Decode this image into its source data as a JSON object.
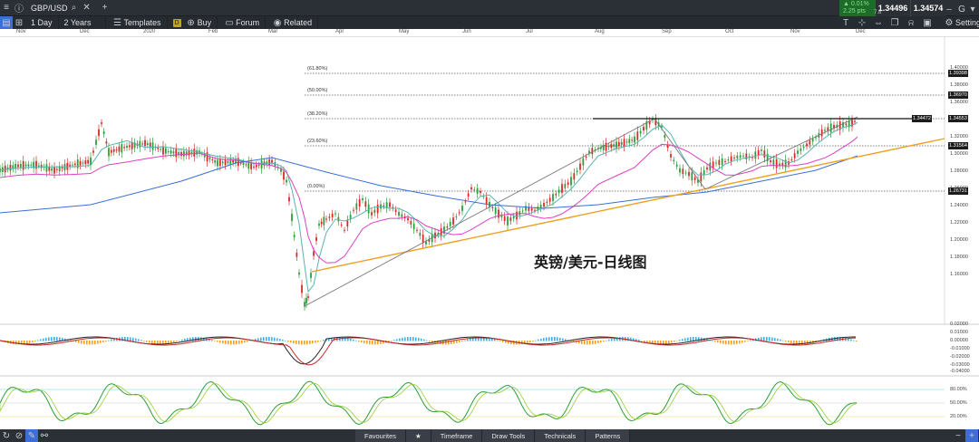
{
  "topbar": {
    "symbol": "GBP/USD",
    "change_pct": "▲ 0.01%",
    "change_pips": "2.25 pts",
    "bid": "1.34496",
    "ask": "1.34574",
    "spread": "7.8"
  },
  "toolbar": {
    "timeframe": "1 Day",
    "range": "2 Years",
    "templates": "Templates",
    "d_badge": "D",
    "buy": "Buy",
    "forum": "Forum",
    "related": "Related",
    "settings": "Settings"
  },
  "months": [
    "Nov",
    "Dec",
    "2020",
    "Feb",
    "Mar",
    "Apr",
    "May",
    "Jun",
    "Jul",
    "Aug",
    "Sep",
    "Oct",
    "Nov",
    "Dec"
  ],
  "fib_levels": [
    {
      "label": "(61.80%)",
      "price": "1.39398"
    },
    {
      "label": "(50.00%)",
      "price": "1.36970"
    },
    {
      "label": "(38.20%)",
      "price": "1.34553"
    },
    {
      "label": "(23.60%)",
      "price": "1.31564"
    },
    {
      "label": "(0.00%)",
      "price": "1.26731"
    }
  ],
  "current_price_label": "1.34472",
  "price_ticks": [
    "1.40000",
    "1.38000",
    "1.36000",
    "1.34000",
    "1.32000",
    "1.30000",
    "1.28000",
    "1.26000",
    "1.24000",
    "1.22000",
    "1.20000",
    "1.18000",
    "1.16000"
  ],
  "macd_ticks": [
    "0.02000",
    "0.01000",
    "0.00000",
    "-0.01000",
    "-0.02000",
    "-0.03000",
    "-0.04000"
  ],
  "macd_current": "-0.03099",
  "stoch_ticks": [
    "80.00%",
    "50.00%",
    "20.00%"
  ],
  "chart_title": "英镑/美元-日线图",
  "bottom_tabs": [
    "Favourites",
    "Timeframe",
    "Draw Tools",
    "Technicals",
    "Patterns"
  ],
  "colors": {
    "bull": "#2e9e3a",
    "bear": "#d62a2a",
    "sma_fast": "#56b5b0",
    "sma_mid": "#e040c0",
    "sma_slow": "#3a6fd6",
    "trend": "#f0a020",
    "macd_pos": "#3ab0e8",
    "macd_neg": "#f0a020"
  }
}
